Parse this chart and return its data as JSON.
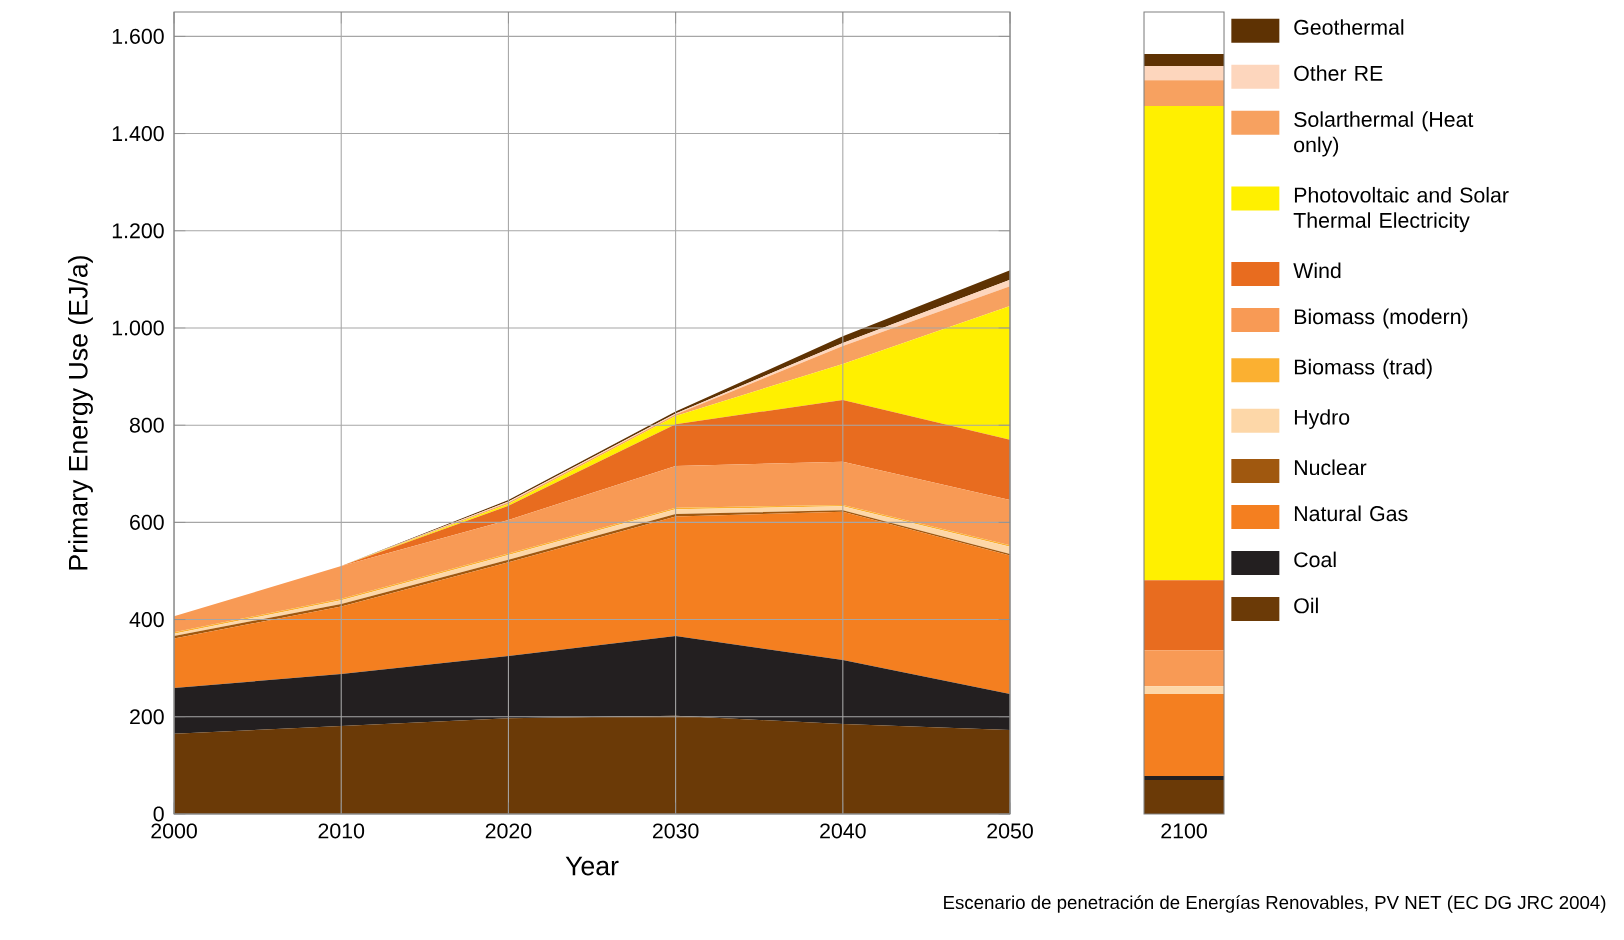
{
  "chart_data": [
    {
      "type": "area",
      "stacked": true,
      "xlabel": "Year",
      "ylabel": "Primary Energy Use (EJ/a)",
      "x": [
        2000,
        2010,
        2020,
        2030,
        2040,
        2050
      ],
      "xlim": [
        2000,
        2050
      ],
      "xticks": [
        2000,
        2010,
        2020,
        2030,
        2040,
        2050
      ],
      "ylim": [
        0,
        1650
      ],
      "yticks": [
        0,
        200,
        400,
        600,
        800,
        {
          "value": 1000,
          "label": "1.000"
        },
        {
          "value": 1200,
          "label": "1.200"
        },
        {
          "value": 1400,
          "label": "1.400"
        },
        {
          "value": 1600,
          "label": "1.600"
        }
      ],
      "grid": true,
      "legend": "right",
      "annotations": [
        "Escenario de penetración de Energías Renovables, PV NET (EC DG JRC 2004)"
      ],
      "series": [
        {
          "name": "Oil",
          "color": "#6b3a07",
          "values": [
            165,
            181,
            197,
            202,
            185,
            173
          ]
        },
        {
          "name": "Coal",
          "color": "#231f20",
          "values": [
            94,
            107,
            128,
            164,
            132,
            74
          ]
        },
        {
          "name": "Natural Gas",
          "color": "#f47f20",
          "values": [
            102,
            139,
            193,
            246,
            305,
            285
          ]
        },
        {
          "name": "Nuclear",
          "color": "#a0580f",
          "values": [
            5,
            5,
            5,
            5,
            3,
            3
          ]
        },
        {
          "name": "Hydro",
          "color": "#fdd7a8",
          "values": [
            5,
            8,
            10,
            10,
            8,
            15
          ]
        },
        {
          "name": "Biomass (trad)",
          "color": "#fbb031",
          "values": [
            3,
            3,
            3,
            3,
            3,
            3
          ]
        },
        {
          "name": "Biomass (modern)",
          "color": "#f89a55",
          "values": [
            33,
            67,
            69,
            86,
            89,
            93
          ]
        },
        {
          "name": "Wind",
          "color": "#e86c1f",
          "values": [
            0,
            0,
            29,
            86,
            127,
            124
          ]
        },
        {
          "name": "Photovoltaic and Solar Thermal Electricity",
          "color": "#fff000",
          "values": [
            0,
            0,
            4,
            17,
            74,
            275
          ]
        },
        {
          "name": "Solarthermal (Heat only)",
          "color": "#f7a160",
          "values": [
            0,
            0,
            3,
            3,
            37,
            41
          ]
        },
        {
          "name": "Other RE",
          "color": "#fdd6bd",
          "values": [
            0,
            0,
            2,
            2,
            6,
            13
          ]
        },
        {
          "name": "Geothermal",
          "color": "#5e3203",
          "values": [
            0,
            0,
            3,
            4,
            14,
            20
          ]
        }
      ]
    },
    {
      "type": "bar",
      "stacked": true,
      "categories": [
        "2100"
      ],
      "ylim": [
        0,
        1650
      ],
      "tick_labels": "x",
      "series": [
        {
          "color": "#6b3a07",
          "values": [
            70
          ]
        },
        {
          "color": "#231f20",
          "values": [
            8
          ]
        },
        {
          "color": "#f47f20",
          "values": [
            169
          ]
        },
        {
          "color": "#fdd7a8",
          "values": [
            16
          ]
        },
        {
          "color": "#f89a55",
          "values": [
            74
          ]
        },
        {
          "color": "#e86c1f",
          "values": [
            144
          ]
        },
        {
          "color": "#fff000",
          "values": [
            976
          ]
        },
        {
          "color": "#f7a160",
          "values": [
            53
          ]
        },
        {
          "color": "#fdd6bd",
          "values": [
            29
          ]
        },
        {
          "color": "#5e3203",
          "values": [
            25
          ]
        }
      ]
    }
  ]
}
